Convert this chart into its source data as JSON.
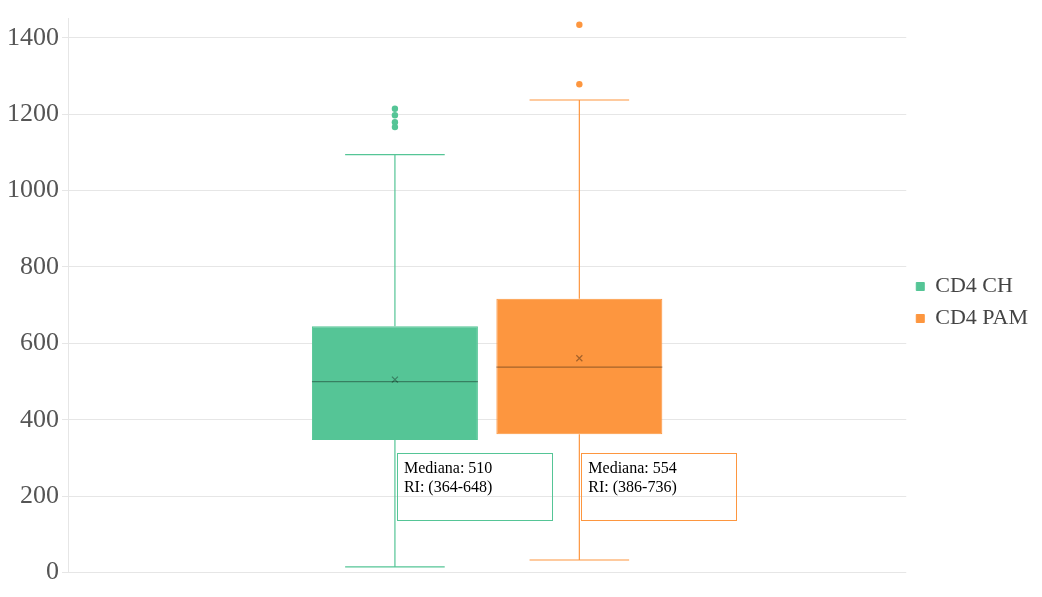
{
  "chart_data": {
    "type": "box",
    "categories": [
      null
    ],
    "series": [
      {
        "name": "CD4 CH",
        "color": "#55c596",
        "boxes": [
          {
            "low": 15,
            "q1": 347,
            "median": 500,
            "q3": 645,
            "high": 1094,
            "mean": 505,
            "outliers": [
              1166,
              1179,
              1197,
              1214
            ]
          }
        ]
      },
      {
        "name": "CD4 PAM",
        "color": "#fd963f",
        "boxes": [
          {
            "low": 33,
            "q1": 362,
            "median": 538,
            "q3": 717,
            "high": 1237,
            "mean": 561,
            "outliers": [
              1278,
              1434
            ]
          }
        ]
      }
    ],
    "ylim": [
      0,
      1450
    ],
    "yticks": [
      0,
      200,
      400,
      600,
      800,
      1000,
      1200,
      1400
    ],
    "grid": "y",
    "legend": "right",
    "annotations": [
      "Mediana: 510\nRI: (364-648)",
      "Mediana: 554\nRI: (386-736)"
    ]
  }
}
